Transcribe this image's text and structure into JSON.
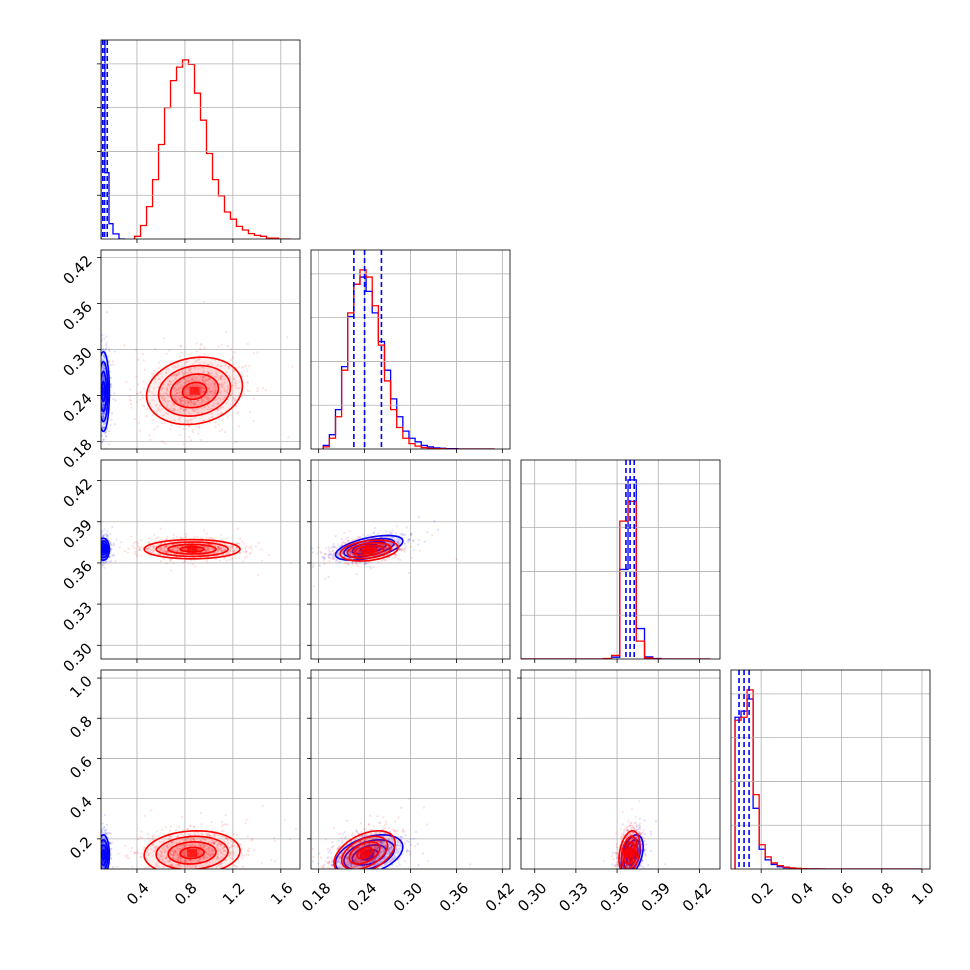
{
  "chart_data": {
    "type": "corner",
    "title": "",
    "series": [
      {
        "name": "",
        "color": "#0000ff"
      },
      {
        "name": "",
        "color": "#ff0000"
      }
    ],
    "parameters": [
      {
        "id": "p0",
        "range": [
          0.1,
          1.76
        ],
        "ticks": [
          0.4,
          0.8,
          1.2,
          1.6
        ],
        "tick_labels": [
          "0.4",
          "0.8",
          "1.2",
          "1.6"
        ]
      },
      {
        "id": "p1",
        "range": [
          0.17,
          0.43
        ],
        "ticks": [
          0.18,
          0.24,
          0.3,
          0.36,
          0.42
        ],
        "tick_labels": [
          "0.18",
          "0.24",
          "0.30",
          "0.36",
          "0.42"
        ]
      },
      {
        "id": "p2",
        "range": [
          0.29,
          0.435
        ],
        "ticks": [
          0.3,
          0.33,
          0.36,
          0.39,
          0.42
        ],
        "tick_labels": [
          "0.30",
          "0.33",
          "0.36",
          "0.39",
          "0.42"
        ]
      },
      {
        "id": "p3",
        "range": [
          0.05,
          1.04
        ],
        "ticks": [
          0.2,
          0.4,
          0.6,
          0.8,
          1.0
        ],
        "tick_labels": [
          "0.2",
          "0.4",
          "0.6",
          "0.8",
          "1.0"
        ]
      }
    ],
    "y_tick_labels": {
      "p1": [
        "0.18",
        "0.24",
        "0.30",
        "0.36",
        "0.42"
      ],
      "p2": [
        "0.30",
        "0.33",
        "0.36",
        "0.39",
        "0.42"
      ],
      "p3": [
        "0.2",
        "0.4",
        "0.6",
        "0.8",
        "1.0"
      ]
    },
    "histograms": {
      "p0": {
        "blue": {
          "edges": [
            0.1,
            0.1333,
            0.1667,
            0.2,
            0.25,
            0.3
          ],
          "counts": [
            900,
            260,
            60,
            20,
            0
          ]
        },
        "red": {
          "edges": [
            0.38,
            0.43,
            0.48,
            0.53,
            0.58,
            0.63,
            0.68,
            0.73,
            0.78,
            0.83,
            0.88,
            0.93,
            0.98,
            1.03,
            1.08,
            1.13,
            1.18,
            1.23,
            1.28,
            1.33,
            1.38,
            1.43,
            1.48,
            1.53,
            1.58,
            1.63,
            1.68
          ],
          "counts": [
            0.3,
            1.5,
            3.6,
            6.6,
            10.5,
            14.6,
            17.6,
            19.1,
            19.9,
            19.4,
            16.2,
            13.2,
            9.5,
            6.6,
            4.8,
            3.0,
            2.2,
            1.4,
            1.0,
            0.6,
            0.4,
            0.3,
            0.1,
            0.1,
            0,
            0
          ]
        },
        "quantile_lines": [
          0.115,
          0.13,
          0.152
        ]
      },
      "p1": {
        "blue": {
          "edges": [
            0.186,
            0.194,
            0.202,
            0.21,
            0.218,
            0.226,
            0.234,
            0.242,
            0.25,
            0.258,
            0.266,
            0.274,
            0.282,
            0.29,
            0.298,
            0.306,
            0.314,
            0.322,
            0.33,
            0.338,
            0.346,
            0.354,
            0.362,
            0.37,
            0.378,
            0.386,
            0.394,
            0.402,
            0.41
          ],
          "counts": [
            1.0,
            4.0,
            11,
            23,
            37,
            46,
            48,
            44,
            38,
            30,
            22,
            14,
            9,
            5,
            3,
            2,
            1,
            0.6,
            0.3,
            0.2,
            0.1,
            0.1,
            0,
            0,
            0,
            0,
            0,
            0
          ]
        },
        "red": {
          "edges": [
            0.186,
            0.194,
            0.202,
            0.21,
            0.218,
            0.226,
            0.234,
            0.242,
            0.25,
            0.258,
            0.266,
            0.274,
            0.282,
            0.29,
            0.298,
            0.306,
            0.314,
            0.322,
            0.33,
            0.338,
            0.346,
            0.354,
            0.362,
            0.37,
            0.378,
            0.386,
            0.394,
            0.402,
            0.41
          ],
          "counts": [
            0.6,
            3.0,
            9,
            22,
            38,
            46,
            50,
            48,
            40,
            29,
            19,
            11,
            6,
            3,
            1.5,
            0.8,
            0.4,
            0.2,
            0.1,
            0.1,
            0,
            0,
            0,
            0,
            0,
            0,
            0,
            0
          ]
        },
        "quantile_lines": [
          0.226,
          0.24,
          0.262
        ]
      },
      "p2": {
        "blue": {
          "edges": [
            0.29,
            0.296,
            0.302,
            0.308,
            0.314,
            0.32,
            0.326,
            0.332,
            0.338,
            0.344,
            0.35,
            0.356,
            0.362,
            0.368,
            0.374,
            0.38,
            0.386,
            0.392,
            0.398,
            0.404,
            0.41,
            0.416,
            0.422,
            0.428
          ],
          "counts": [
            0,
            0,
            0,
            0,
            0,
            0,
            0,
            0,
            0,
            0,
            0.2,
            1.0,
            50,
            100,
            17,
            1.2,
            0.3,
            0,
            0,
            0,
            0,
            0,
            0,
            0
          ]
        },
        "red": {
          "edges": [
            0.29,
            0.296,
            0.302,
            0.308,
            0.314,
            0.32,
            0.326,
            0.332,
            0.338,
            0.344,
            0.35,
            0.356,
            0.362,
            0.368,
            0.374,
            0.38,
            0.386,
            0.392,
            0.398,
            0.404,
            0.41,
            0.416,
            0.422,
            0.428
          ],
          "counts": [
            0,
            0,
            0,
            0,
            0,
            0,
            0,
            0,
            0,
            0,
            0.3,
            2.0,
            77,
            88,
            10,
            0.6,
            0.1,
            0,
            0,
            0,
            0,
            0,
            0,
            0
          ]
        },
        "quantile_lines": [
          0.3665,
          0.3695,
          0.3725
        ]
      },
      "p3": {
        "blue": {
          "edges": [
            0.07,
            0.1,
            0.13,
            0.16,
            0.19,
            0.22,
            0.25,
            0.28,
            0.31,
            0.34,
            0.37,
            0.4,
            0.43,
            0.46,
            0.49,
            0.52,
            0.55,
            0.58,
            0.61,
            0.64,
            0.67,
            0.7,
            0.73,
            0.76,
            0.79,
            0.82,
            0.85,
            0.88,
            0.91,
            0.94,
            0.97,
            1.0
          ],
          "counts": [
            100,
            104,
            112,
            40,
            13,
            6,
            3,
            1.5,
            0.8,
            0.5,
            0.3,
            0.2,
            0.1,
            0.1,
            0,
            0,
            0,
            0,
            0,
            0,
            0,
            0,
            0,
            0,
            0,
            0,
            0,
            0,
            0,
            0,
            0
          ]
        },
        "red": {
          "edges": [
            0.07,
            0.1,
            0.13,
            0.16,
            0.19,
            0.22,
            0.25,
            0.28,
            0.31,
            0.34,
            0.37,
            0.4,
            0.43,
            0.46,
            0.49,
            0.52,
            0.55,
            0.58,
            0.61,
            0.64,
            0.67,
            0.7,
            0.73,
            0.76,
            0.79,
            0.82,
            0.85,
            0.88,
            0.91,
            0.94,
            0.97,
            1.0
          ],
          "counts": [
            98,
            100,
            118,
            49,
            16,
            8,
            4,
            2.2,
            1.2,
            0.7,
            0.4,
            0.2,
            0.1,
            0.1,
            0.1,
            0,
            0,
            0,
            0,
            0,
            0,
            0,
            0,
            0,
            0,
            0,
            0,
            0,
            0,
            0,
            0
          ]
        },
        "quantile_lines": [
          0.09,
          0.115,
          0.14
        ]
      }
    },
    "scatter_2d": [
      {
        "x": "p0",
        "y": "p1",
        "blue": {
          "center": [
            0.12,
            0.245
          ],
          "sigma": [
            0.025,
            0.026
          ],
          "rho": 0.0
        },
        "red": {
          "center": [
            0.88,
            0.246
          ],
          "sigma": [
            0.2,
            0.022
          ],
          "rho": 0.15
        }
      },
      {
        "x": "p0",
        "y": "p2",
        "blue": {
          "center": [
            0.12,
            0.37
          ],
          "sigma": [
            0.025,
            0.004
          ],
          "rho": 0.0
        },
        "red": {
          "center": [
            0.86,
            0.37
          ],
          "sigma": [
            0.2,
            0.0035
          ],
          "rho": 0.0
        }
      },
      {
        "x": "p1",
        "y": "p2",
        "blue": {
          "center": [
            0.246,
            0.371
          ],
          "sigma": [
            0.022,
            0.0045
          ],
          "rho": 0.55
        },
        "red": {
          "center": [
            0.246,
            0.369
          ],
          "sigma": [
            0.019,
            0.0038
          ],
          "rho": 0.3
        }
      },
      {
        "x": "p0",
        "y": "p3",
        "blue": {
          "center": [
            0.12,
            0.12
          ],
          "sigma": [
            0.025,
            0.05
          ],
          "rho": 0.0
        },
        "red": {
          "center": [
            0.86,
            0.13
          ],
          "sigma": [
            0.2,
            0.055
          ],
          "rho": 0.1
        }
      },
      {
        "x": "p1",
        "y": "p3",
        "blue": {
          "center": [
            0.246,
            0.12
          ],
          "sigma": [
            0.022,
            0.05
          ],
          "rho": 0.4
        },
        "red": {
          "center": [
            0.24,
            0.13
          ],
          "sigma": [
            0.02,
            0.055
          ],
          "rho": 0.45
        }
      },
      {
        "x": "p2",
        "y": "p3",
        "blue": {
          "center": [
            0.371,
            0.12
          ],
          "sigma": [
            0.004,
            0.05
          ],
          "rho": 0.4
        },
        "red": {
          "center": [
            0.369,
            0.13
          ],
          "sigma": [
            0.0038,
            0.055
          ],
          "rho": 0.3
        }
      }
    ],
    "contour_levels_sigma": [
      0.5,
      1.0,
      1.5,
      2.0
    ],
    "grid": true,
    "legend": "none",
    "xlabel": "",
    "ylabel": ""
  }
}
